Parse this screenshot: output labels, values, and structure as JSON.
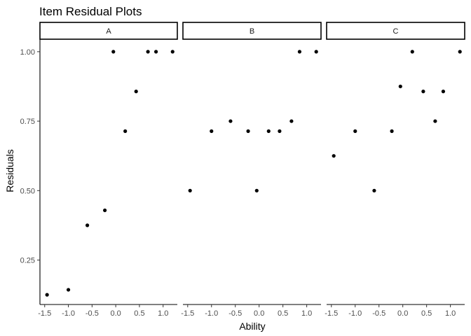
{
  "chart_data": {
    "type": "scatter",
    "title": "Item Residual Plots",
    "xlabel": "Ability",
    "ylabel": "Residuals",
    "xlim": [
      -1.6,
      1.3
    ],
    "ylim": [
      0.09,
      1.045
    ],
    "x_ticks": [
      -1.5,
      -1.0,
      -0.5,
      0.0,
      0.5,
      1.0
    ],
    "x_tick_labels": [
      "-1.5",
      "-1.0",
      "-0.5",
      "0.0",
      "0.5",
      "1.0"
    ],
    "y_ticks": [
      0.25,
      0.5,
      0.75,
      1.0
    ],
    "y_tick_labels": [
      "0.25",
      "0.50",
      "0.75",
      "1.00"
    ],
    "grid": false,
    "point_color": "#000000",
    "facets": [
      {
        "label": "A",
        "points": [
          {
            "x": -1.45,
            "y": 0.125
          },
          {
            "x": -1.0,
            "y": 0.143
          },
          {
            "x": -0.6,
            "y": 0.375
          },
          {
            "x": -0.23,
            "y": 0.429
          },
          {
            "x": -0.05,
            "y": 1.0
          },
          {
            "x": 0.2,
            "y": 0.714
          },
          {
            "x": 0.43,
            "y": 0.857
          },
          {
            "x": 0.68,
            "y": 1.0
          },
          {
            "x": 0.85,
            "y": 1.0
          },
          {
            "x": 1.2,
            "y": 1.0
          }
        ]
      },
      {
        "label": "B",
        "points": [
          {
            "x": -1.45,
            "y": 0.5
          },
          {
            "x": -1.0,
            "y": 0.714
          },
          {
            "x": -0.6,
            "y": 0.75
          },
          {
            "x": -0.23,
            "y": 0.714
          },
          {
            "x": -0.05,
            "y": 0.5
          },
          {
            "x": 0.2,
            "y": 0.714
          },
          {
            "x": 0.43,
            "y": 0.714
          },
          {
            "x": 0.68,
            "y": 0.75
          },
          {
            "x": 0.85,
            "y": 1.0
          },
          {
            "x": 1.2,
            "y": 1.0
          }
        ]
      },
      {
        "label": "C",
        "points": [
          {
            "x": -1.45,
            "y": 0.625
          },
          {
            "x": -1.0,
            "y": 0.714
          },
          {
            "x": -0.6,
            "y": 0.5
          },
          {
            "x": -0.23,
            "y": 0.714
          },
          {
            "x": -0.05,
            "y": 0.875
          },
          {
            "x": 0.2,
            "y": 1.0
          },
          {
            "x": 0.43,
            "y": 0.857
          },
          {
            "x": 0.68,
            "y": 0.75
          },
          {
            "x": 0.85,
            "y": 0.857
          },
          {
            "x": 1.2,
            "y": 1.0
          }
        ]
      }
    ]
  }
}
